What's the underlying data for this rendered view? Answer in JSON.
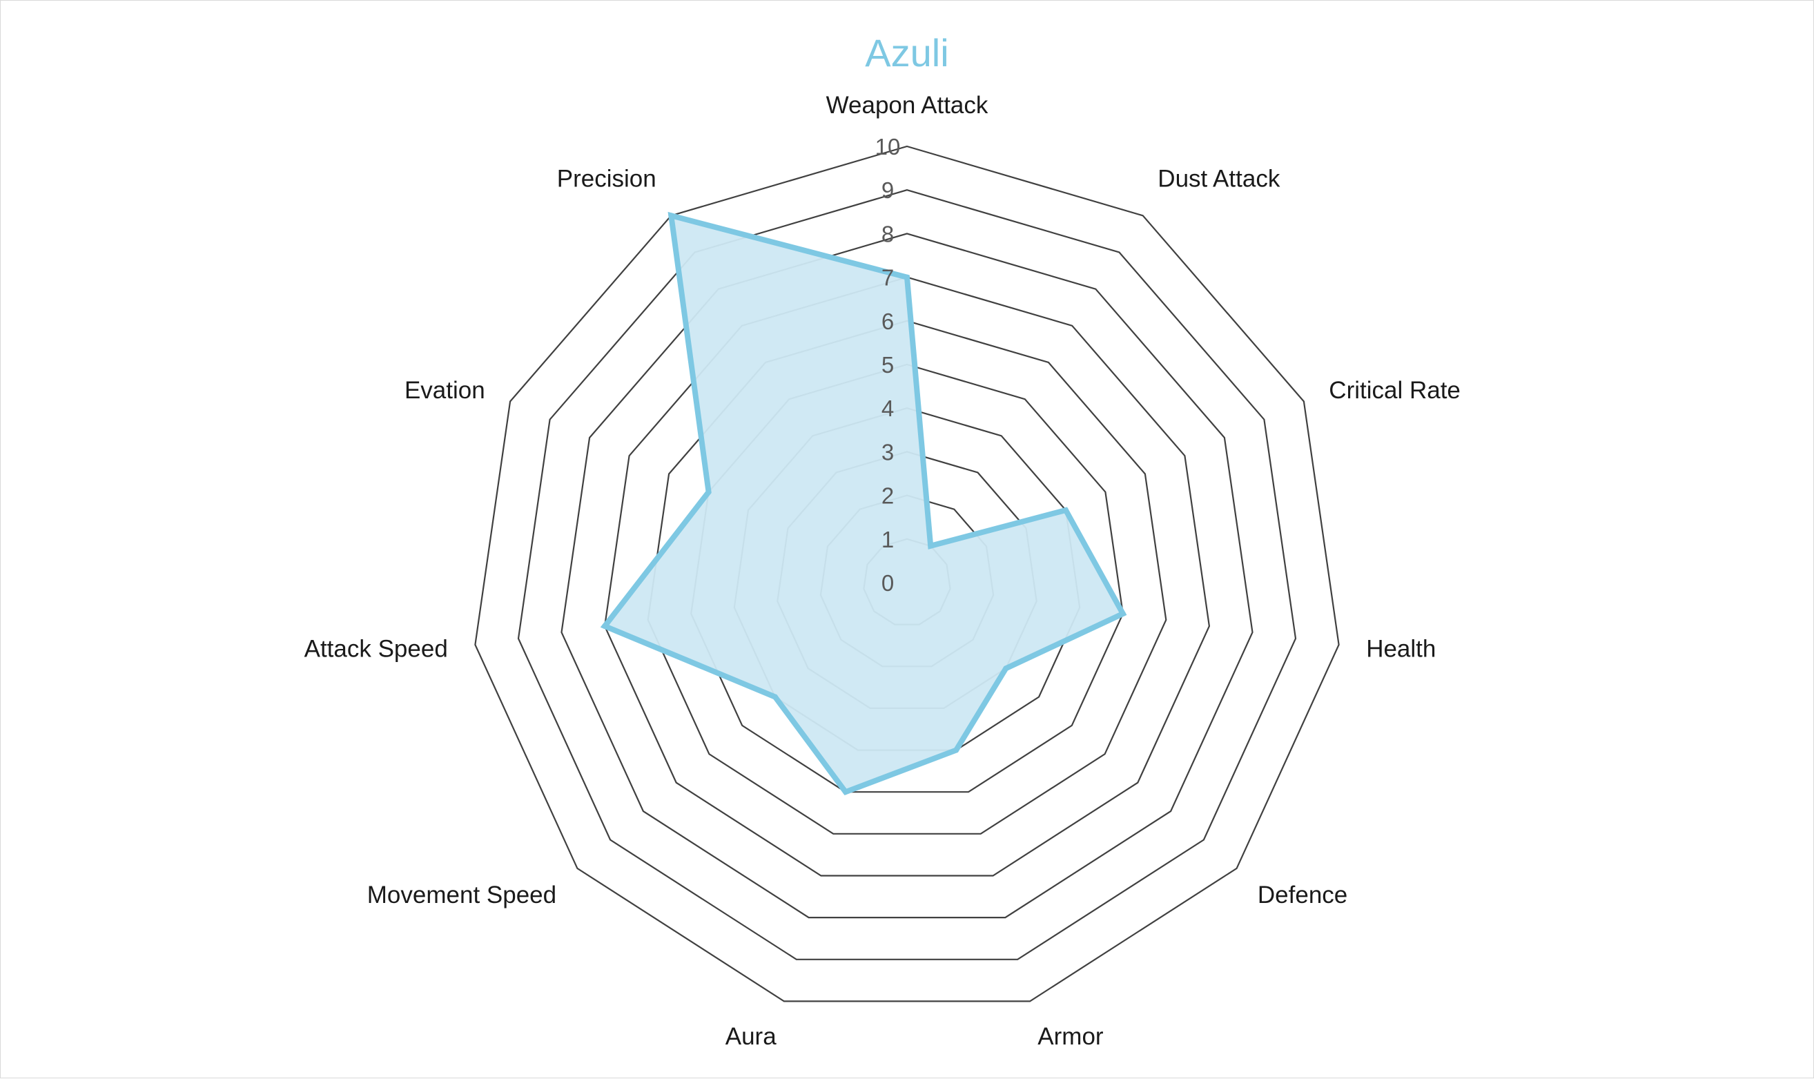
{
  "chart_data": {
    "type": "radar",
    "title": "Azuli",
    "categories": [
      "Weapon Attack",
      "Dust Attack",
      "Critical Rate",
      "Health",
      "Defence",
      "Armor",
      "Aura",
      "Movement Speed",
      "Attack Speed",
      "Evation",
      "Precision"
    ],
    "series": [
      {
        "name": "",
        "values": [
          7,
          1,
          4,
          5,
          3,
          4,
          5,
          4,
          7,
          5,
          10
        ]
      }
    ],
    "rlim": [
      0,
      10
    ],
    "ticks": [
      0,
      1,
      2,
      3,
      4,
      5,
      6,
      7,
      8,
      9,
      10
    ],
    "grid": true,
    "legend": "none"
  },
  "colors": {
    "series": "#7ec8e3",
    "fill": "#cde8f3",
    "grid": "#404040",
    "title": "#7ec8e3"
  }
}
